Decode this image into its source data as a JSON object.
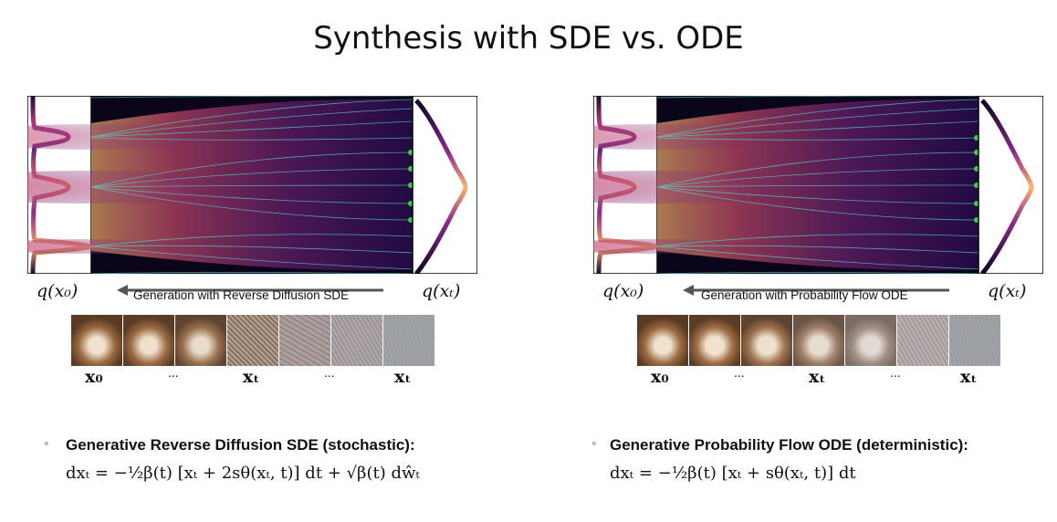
{
  "title": "Synthesis with SDE vs. ODE",
  "colors": {
    "flow_background": "#0a0518",
    "stream_lines": "#5ad1c5",
    "gradient_high": "#fbb56d",
    "gradient_mid": "#b5367a",
    "gradient_low": "#3b0f70",
    "arrow": "#555555",
    "endpoint_green": "#3cd048"
  },
  "panels": [
    {
      "id": "sde",
      "left_dist_label": "q(x₀)",
      "right_dist_label": "q(xₜ)",
      "arrow_label": "Generation with Reverse Diffusion SDE",
      "strip_labels": [
        "x₀",
        "...",
        "xₜ",
        "...",
        "xₜ"
      ],
      "bullet_heading": "Generative Reverse Diffusion SDE (stochastic):",
      "equation": "dxₜ = −½β(t) [xₜ + 2sθ(xₜ, t)] dt + √β(t) dŵₜ"
    },
    {
      "id": "ode",
      "left_dist_label": "q(x₀)",
      "right_dist_label": "q(xₜ)",
      "arrow_label": "Generation with Probability Flow ODE",
      "strip_labels": [
        "x₀",
        "...",
        "xₜ",
        "...",
        "xₜ"
      ],
      "bullet_heading": "Generative Probability Flow ODE (deterministic):",
      "equation": "dxₜ = −½β(t) [xₜ + sθ(xₜ, t)] dt"
    }
  ]
}
